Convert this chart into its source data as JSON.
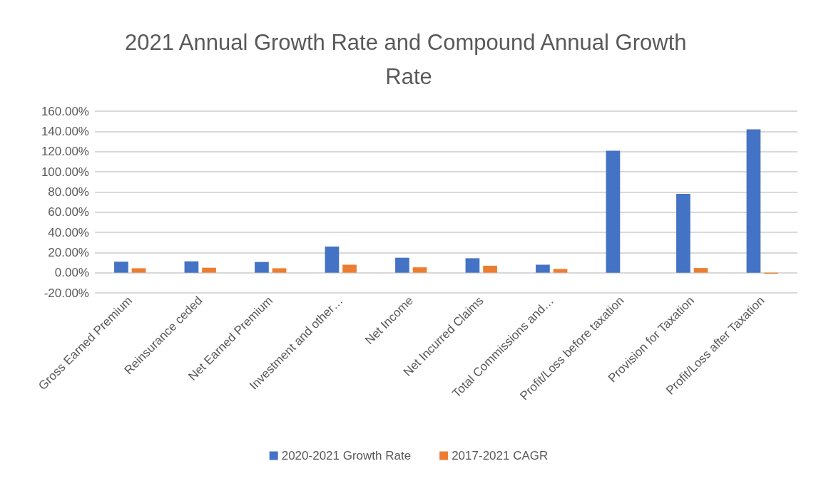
{
  "chart_data": {
    "type": "bar",
    "title": "2021 Annual Growth Rate and Compound Annual Growth Rate",
    "categories": [
      "Gross Earned Premium",
      "Reinsurance ceded",
      "Net Earned Premium",
      "Investment and other…",
      "Net Income",
      "Net Incurred Claims",
      "Total Commissions and…",
      "Profit/Loss before taxation",
      "Provision for Taxation",
      "Profit/Loss after Taxation"
    ],
    "series": [
      {
        "name": "2020-2021 Growth Rate",
        "color": "#4472c4",
        "values": [
          10.9,
          11.3,
          10.6,
          25.9,
          14.8,
          14.3,
          7.9,
          120.9,
          78.2,
          142
        ]
      },
      {
        "name": "2017-2021 CAGR",
        "color": "#ed7d31",
        "values": [
          4.4,
          4.9,
          4.4,
          7.9,
          5.3,
          6.9,
          3.7,
          null,
          4.6,
          -1
        ]
      }
    ],
    "ylim": [
      -20,
      160
    ],
    "yticks": [
      {
        "value": -20,
        "label": "-20.00%"
      },
      {
        "value": 0,
        "label": "0.00%"
      },
      {
        "value": 20,
        "label": "20.00%"
      },
      {
        "value": 40,
        "label": "40.00%"
      },
      {
        "value": 60,
        "label": "60.00%"
      },
      {
        "value": 80,
        "label": "80.00%"
      },
      {
        "value": 100,
        "label": "100.00%"
      },
      {
        "value": 120,
        "label": "120.00%"
      },
      {
        "value": 140,
        "label": "140.00%"
      },
      {
        "value": 160,
        "label": "160.00%"
      }
    ],
    "grid": "y",
    "legend": "bottom"
  }
}
